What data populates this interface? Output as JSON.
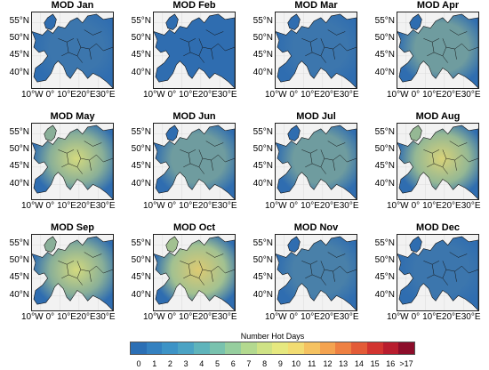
{
  "panels": [
    {
      "title": "MOD Jan",
      "level": 0.05
    },
    {
      "title": "MOD Feb",
      "level": 0.0
    },
    {
      "title": "MOD Mar",
      "level": 0.05
    },
    {
      "title": "MOD Apr",
      "level": 0.25
    },
    {
      "title": "MOD May",
      "level": 0.35
    },
    {
      "title": "MOD Jun",
      "level": 0.25
    },
    {
      "title": "MOD Jul",
      "level": 0.25
    },
    {
      "title": "MOD Aug",
      "level": 0.4
    },
    {
      "title": "MOD Sep",
      "level": 0.35
    },
    {
      "title": "MOD Oct",
      "level": 0.45
    },
    {
      "title": "MOD Nov",
      "level": 0.1
    },
    {
      "title": "MOD Dec",
      "level": 0.05
    }
  ],
  "lat_labels": [
    "55°N",
    "50°N",
    "45°N",
    "40°N"
  ],
  "lon_labels": [
    "10°W",
    "0°",
    "10°E",
    "20°E",
    "30°E"
  ],
  "colorbar": {
    "title": "Number Hot Days",
    "ticks": [
      "0",
      "1",
      "2",
      "3",
      "4",
      "5",
      "6",
      "7",
      "8",
      "9",
      "10",
      "11",
      "12",
      "13",
      "14",
      "15",
      "16",
      ">17"
    ],
    "colors": [
      "#2b6fb5",
      "#3481c0",
      "#3d93c6",
      "#4ba3c4",
      "#5fb4bb",
      "#79c2ae",
      "#96ce9e",
      "#b3d98f",
      "#cfe285",
      "#e6e87f",
      "#f2dc72",
      "#f5c261",
      "#f4a350",
      "#ee8042",
      "#e35b37",
      "#d23430",
      "#b81d2e",
      "#8c0d2a"
    ]
  },
  "colors": {
    "ocean": "#f2f2f2",
    "land": "#2f6db0",
    "border": "#111111"
  }
}
